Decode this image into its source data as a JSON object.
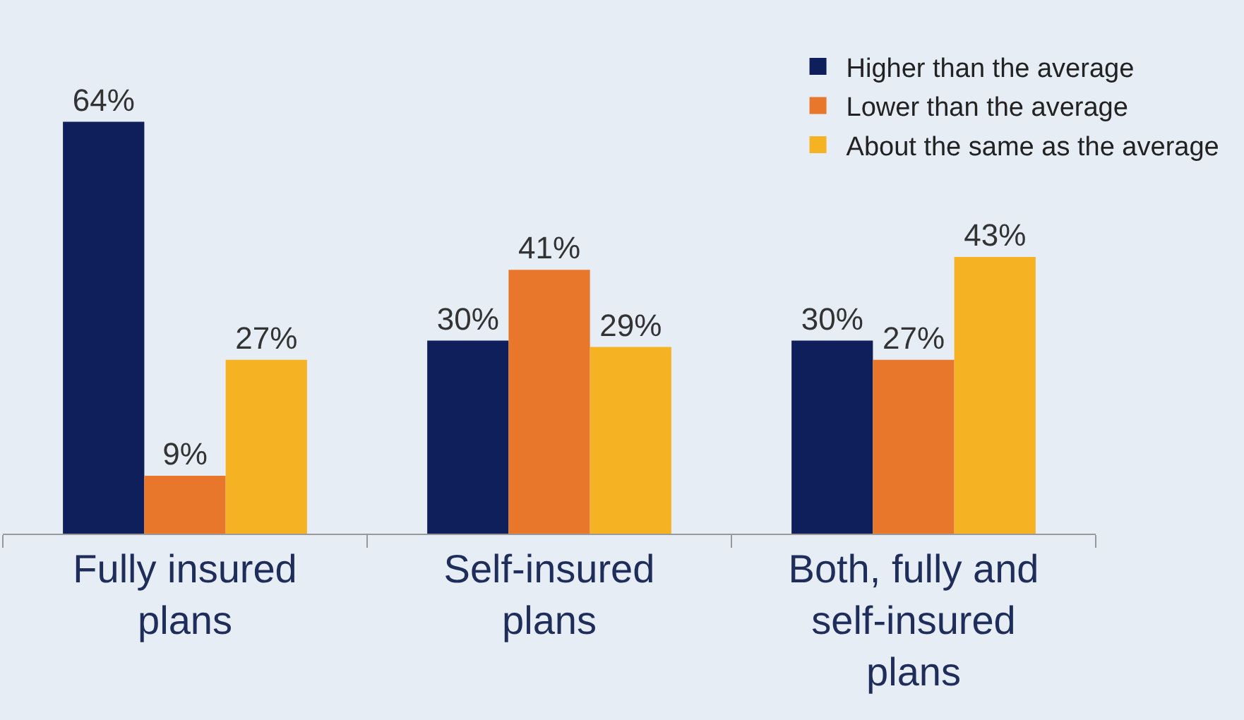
{
  "chart_data": {
    "type": "bar",
    "categories": [
      "Fully insured plans",
      "Self-insured plans",
      "Both, fully and self-insured plans"
    ],
    "series": [
      {
        "name": "Higher than the average",
        "color": "#0e1f5b",
        "values": [
          64,
          30,
          30
        ],
        "value_labels": [
          "64%",
          "30%",
          "30%"
        ]
      },
      {
        "name": "Lower than the average",
        "color": "#e8762b",
        "values": [
          9,
          41,
          27
        ],
        "value_labels": [
          "9%",
          "41%",
          "27%"
        ]
      },
      {
        "name": "About the same as the average",
        "color": "#f5b324",
        "values": [
          27,
          29,
          43
        ],
        "value_labels": [
          "27%",
          "29%",
          "43%"
        ]
      }
    ],
    "legend": "top right",
    "grid": false
  }
}
